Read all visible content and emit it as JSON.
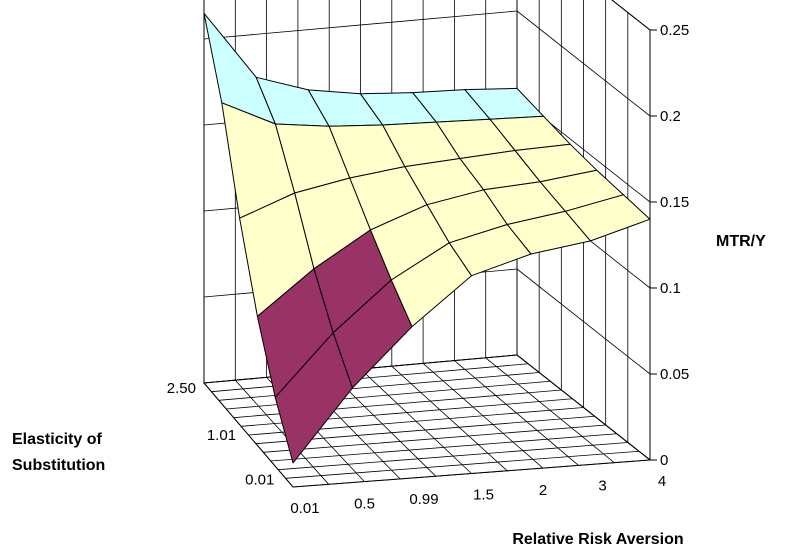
{
  "chart_data": {
    "type": "surface",
    "title": "",
    "xlabel": "Relative Risk Aversion",
    "ylabel_lines": [
      "Elasticity of",
      "Substitution"
    ],
    "zlabel": "MTR/Y",
    "x_tick_labels": [
      "0.01",
      "0.5",
      "0.99",
      "1.5",
      "2",
      "3",
      "4"
    ],
    "y_tick_labels": [
      "2.50",
      "1.01",
      "0.01"
    ],
    "z_tick_labels": [
      "0",
      "0.05",
      "0.1",
      "0.15",
      "0.2",
      "0.25"
    ],
    "zlim": [
      0,
      0.25
    ],
    "z_bands": [
      {
        "range": [
          0,
          0.1
        ],
        "color": "#993366"
      },
      {
        "range": [
          0.1,
          0.15
        ],
        "color": "#ffffcc"
      },
      {
        "range": [
          0.15,
          0.2
        ],
        "color": "#ccffff"
      }
    ],
    "grid": true,
    "z_values_front_to_back": [
      [
        0.014,
        0.055,
        0.088,
        0.115,
        0.125,
        0.13,
        0.14
      ],
      [
        0.04,
        0.075,
        0.103,
        0.122,
        0.13,
        0.135,
        0.142
      ],
      [
        0.075,
        0.1,
        0.12,
        0.132,
        0.138,
        0.14,
        0.144
      ],
      [
        0.12,
        0.132,
        0.138,
        0.142,
        0.144,
        0.146,
        0.147
      ],
      [
        0.175,
        0.16,
        0.156,
        0.154,
        0.153,
        0.152,
        0.151
      ],
      [
        0.215,
        0.175,
        0.165,
        0.16,
        0.158,
        0.157,
        0.155
      ]
    ]
  }
}
